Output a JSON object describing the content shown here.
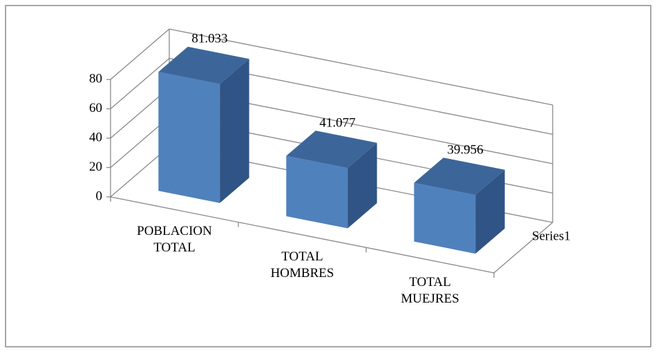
{
  "chart_data": {
    "type": "bar3d",
    "categories": [
      "POBLACION TOTAL",
      "TOTAL HOMBRES",
      "TOTAL MUEJRES"
    ],
    "series": [
      {
        "name": "Series1",
        "color": "#4f81bd",
        "values": [
          81.033,
          41.077,
          39.956
        ]
      }
    ],
    "ylim": [
      0,
      80
    ],
    "yticks": [
      0,
      20,
      40,
      60,
      80
    ],
    "grid": true,
    "legend": "right"
  }
}
